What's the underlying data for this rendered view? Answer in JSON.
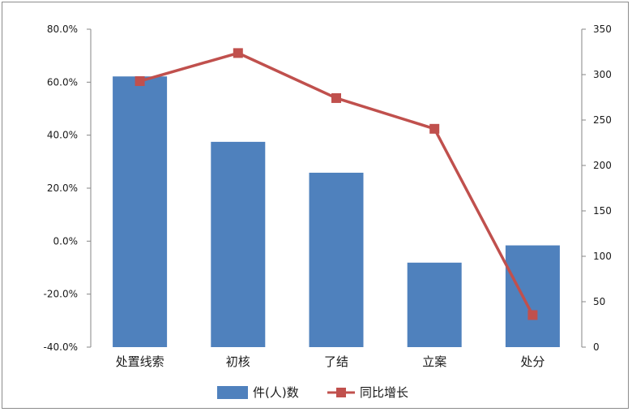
{
  "chart_data": {
    "type": "bar",
    "categories": [
      "处置线索",
      "初核",
      "了结",
      "立案",
      "处分"
    ],
    "series": [
      {
        "name": "件(人)数",
        "type": "bar",
        "axis": "right",
        "values": [
          298,
          226,
          192,
          93,
          112
        ]
      },
      {
        "name": "同比增长",
        "type": "line",
        "axis": "left",
        "values": [
          60.4,
          71.0,
          54.0,
          42.4,
          -27.9
        ]
      }
    ],
    "left_axis": {
      "ylim": [
        -40,
        80
      ],
      "ticks": [
        "80.0%",
        "60.0%",
        "40.0%",
        "20.0%",
        "0.0%",
        "-20.0%",
        "-40.0%"
      ]
    },
    "right_axis": {
      "ylim": [
        0,
        350
      ],
      "ticks": [
        "350",
        "300",
        "250",
        "200",
        "150",
        "100",
        "50",
        "0"
      ]
    },
    "grid": false,
    "legend_position": "bottom",
    "colors": {
      "bar": "#4F81BD",
      "line": "#C0504D"
    }
  }
}
